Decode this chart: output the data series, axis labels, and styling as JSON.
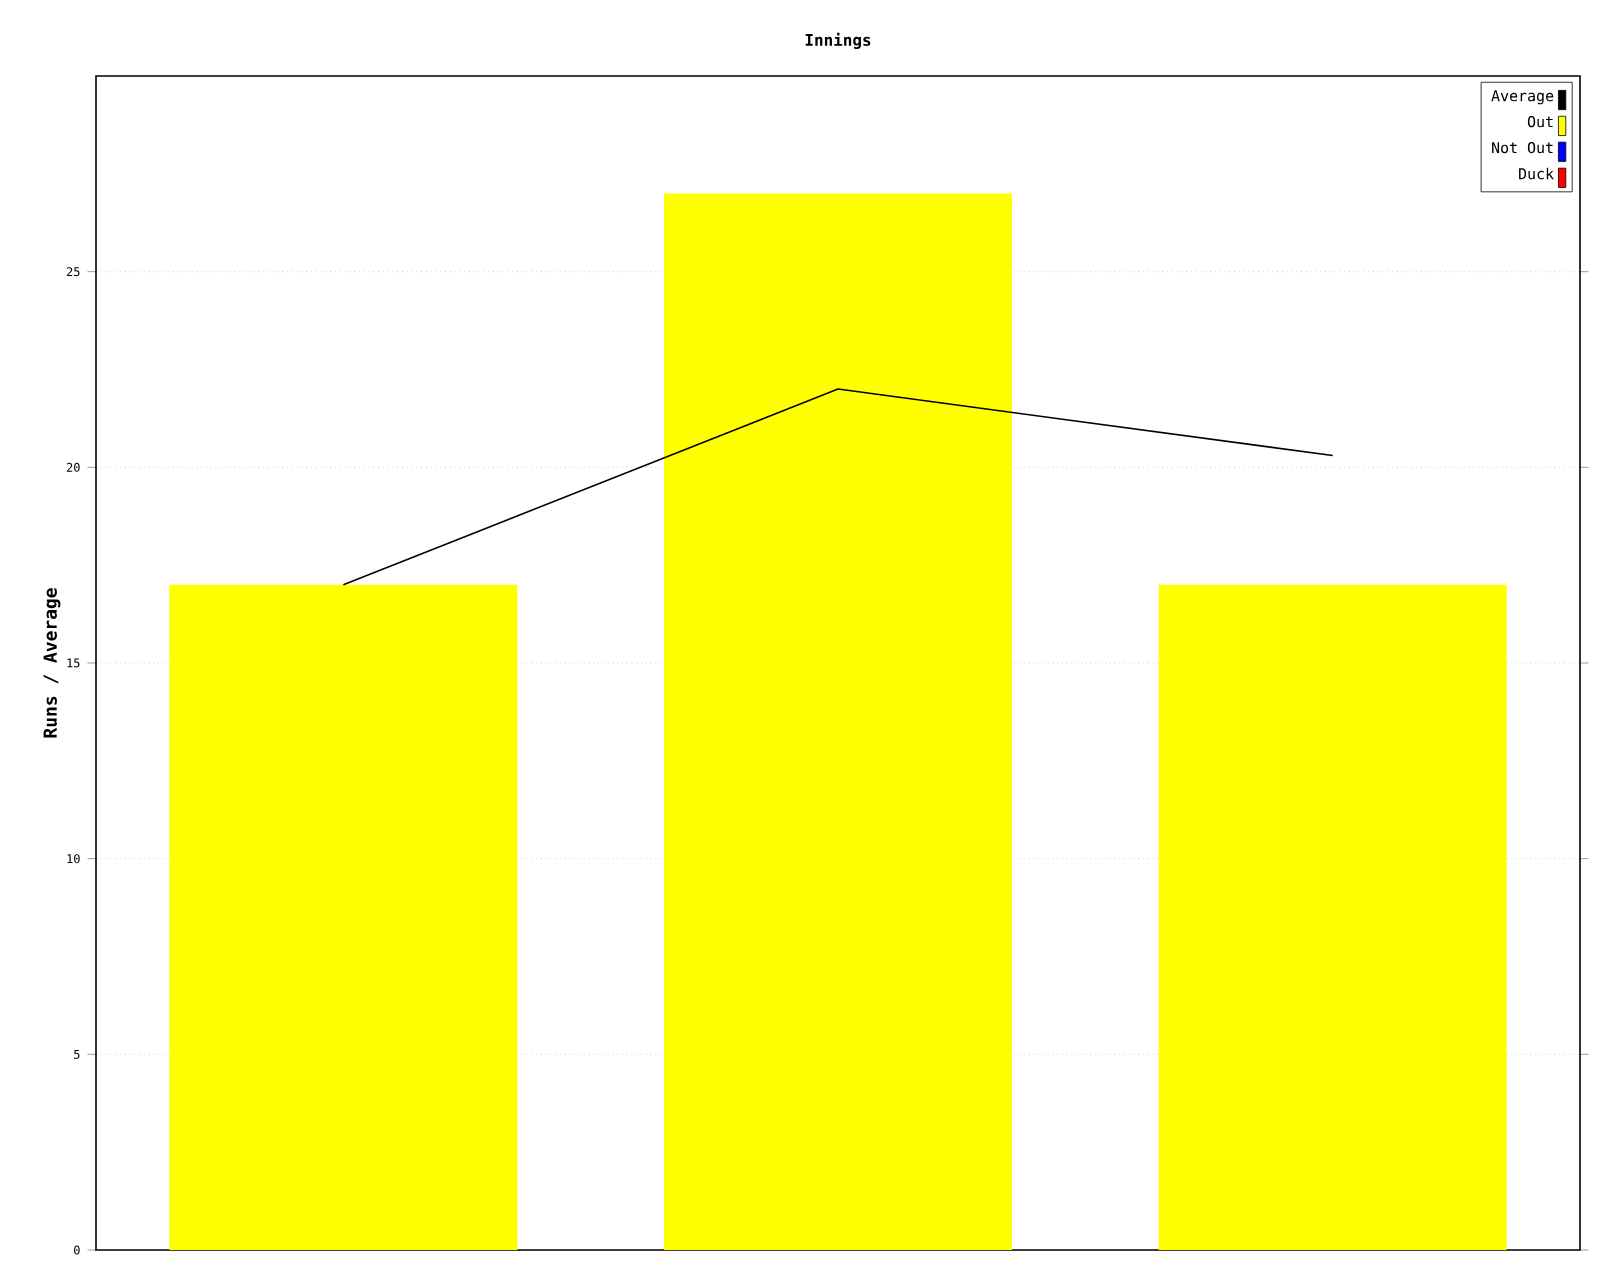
{
  "chart_data": {
    "type": "bar",
    "title": "Innings",
    "ylabel": "Runs / Average",
    "categories": [
      null,
      null,
      null
    ],
    "stacked": true,
    "ylim": [
      0,
      30
    ],
    "yticks": [
      0,
      5,
      10,
      15,
      20,
      25
    ],
    "grid": "y",
    "legend": "top right",
    "series": [
      {
        "name": "Average",
        "type": "line",
        "color": "#000000",
        "values": [
          17,
          22,
          20.3
        ]
      },
      {
        "name": "Out",
        "color": "#ffff00",
        "values": [
          17,
          27,
          17
        ]
      },
      {
        "name": "Not Out",
        "color": "#0000ff",
        "values": [
          0,
          0,
          0
        ]
      },
      {
        "name": "Duck",
        "color": "#ff0000",
        "values": [
          0,
          0,
          0
        ]
      }
    ]
  }
}
